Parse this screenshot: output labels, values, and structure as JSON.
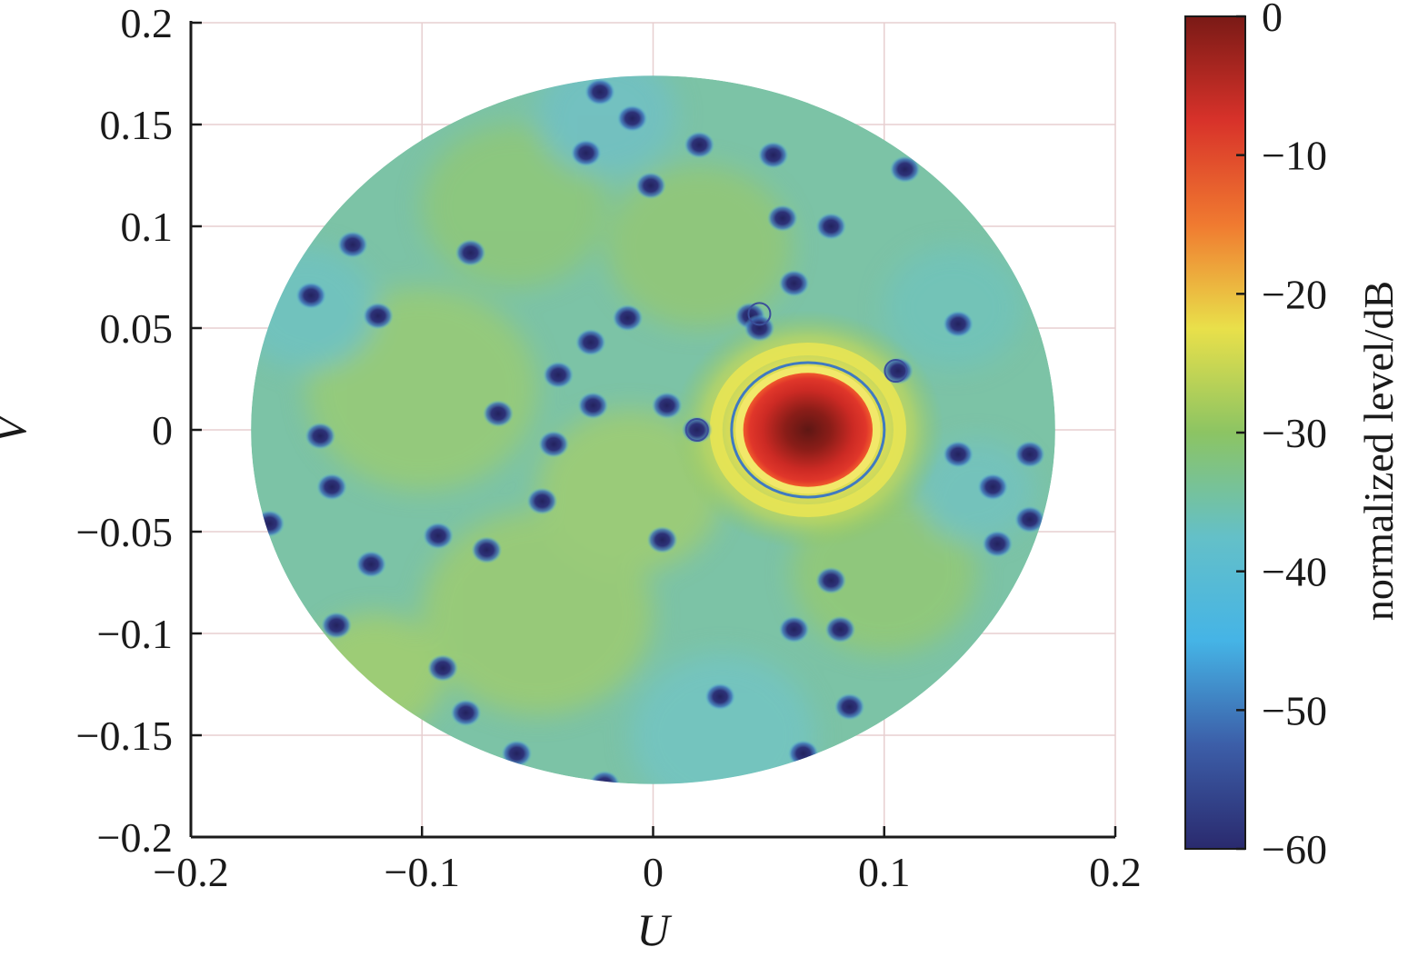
{
  "chart_data": {
    "type": "heatmap",
    "title": "",
    "xlabel": "U",
    "ylabel": "V",
    "xlim": [
      -0.2,
      0.2
    ],
    "ylim": [
      -0.2,
      0.2
    ],
    "x_ticks": [
      -0.2,
      -0.1,
      0,
      0.1,
      0.2
    ],
    "x_tick_labels": [
      "−0.2",
      "−0.1",
      "0",
      "0.1",
      "0.2"
    ],
    "y_ticks": [
      0.2,
      0.15,
      0.1,
      0.05,
      0,
      -0.05,
      -0.1,
      -0.15,
      -0.2
    ],
    "y_tick_labels": [
      "0.2",
      "0.15",
      "0.1",
      "0.05",
      "0",
      "−0.05",
      "−0.1",
      "−0.15",
      "−0.2"
    ],
    "grid": true,
    "region": {
      "shape": "circle",
      "center": [
        0,
        0
      ],
      "radius": 0.174
    },
    "background_level": -33,
    "main_lobe": {
      "u": 0.067,
      "v": 0.0,
      "level": 0,
      "radius": 0.028
    },
    "markers": [
      {
        "u": 0.019,
        "v": 0.0,
        "shape": "circle"
      },
      {
        "u": 0.105,
        "v": 0.029,
        "shape": "circle"
      },
      {
        "u": 0.046,
        "v": 0.057,
        "shape": "circle"
      }
    ],
    "nulls": [
      [
        -0.023,
        0.166
      ],
      [
        -0.009,
        0.153
      ],
      [
        -0.029,
        0.136
      ],
      [
        0.02,
        0.14
      ],
      [
        0.052,
        0.135
      ],
      [
        0.109,
        0.128
      ],
      [
        -0.001,
        0.12
      ],
      [
        0.056,
        0.104
      ],
      [
        0.077,
        0.1
      ],
      [
        -0.13,
        0.091
      ],
      [
        -0.079,
        0.087
      ],
      [
        0.061,
        0.072
      ],
      [
        -0.148,
        0.066
      ],
      [
        -0.119,
        0.056
      ],
      [
        0.042,
        0.056
      ],
      [
        0.046,
        0.05
      ],
      [
        0.132,
        0.052
      ],
      [
        -0.011,
        0.055
      ],
      [
        -0.027,
        0.043
      ],
      [
        0.106,
        0.029
      ],
      [
        -0.041,
        0.027
      ],
      [
        0.006,
        0.012
      ],
      [
        -0.026,
        0.012
      ],
      [
        -0.067,
        0.008
      ],
      [
        0.019,
        0.0
      ],
      [
        -0.144,
        -0.003
      ],
      [
        -0.043,
        -0.007
      ],
      [
        0.132,
        -0.012
      ],
      [
        0.163,
        -0.012
      ],
      [
        -0.139,
        -0.028
      ],
      [
        0.147,
        -0.028
      ],
      [
        -0.048,
        -0.035
      ],
      [
        0.163,
        -0.044
      ],
      [
        -0.166,
        -0.046
      ],
      [
        -0.093,
        -0.052
      ],
      [
        0.004,
        -0.054
      ],
      [
        0.149,
        -0.056
      ],
      [
        -0.072,
        -0.059
      ],
      [
        -0.122,
        -0.066
      ],
      [
        0.077,
        -0.074
      ],
      [
        -0.137,
        -0.096
      ],
      [
        0.061,
        -0.098
      ],
      [
        0.081,
        -0.098
      ],
      [
        -0.091,
        -0.117
      ],
      [
        0.029,
        -0.131
      ],
      [
        0.085,
        -0.136
      ],
      [
        -0.081,
        -0.139
      ],
      [
        -0.059,
        -0.159
      ],
      [
        0.065,
        -0.159
      ],
      [
        -0.021,
        -0.174
      ]
    ],
    "colorbar": {
      "title": "normalized level/dB",
      "range": [
        -60,
        0
      ],
      "ticks": [
        0,
        -10,
        -20,
        -30,
        -40,
        -50,
        -60
      ],
      "tick_labels": [
        "0",
        "−10",
        "−20",
        "−30",
        "−40",
        "−50",
        "−60"
      ],
      "colors": [
        "#7a1a16",
        "#d8322a",
        "#f07a30",
        "#e9e04a",
        "#8cc463",
        "#64c0c8",
        "#45b4e6",
        "#3c5ea8",
        "#2a2a6e"
      ]
    }
  }
}
